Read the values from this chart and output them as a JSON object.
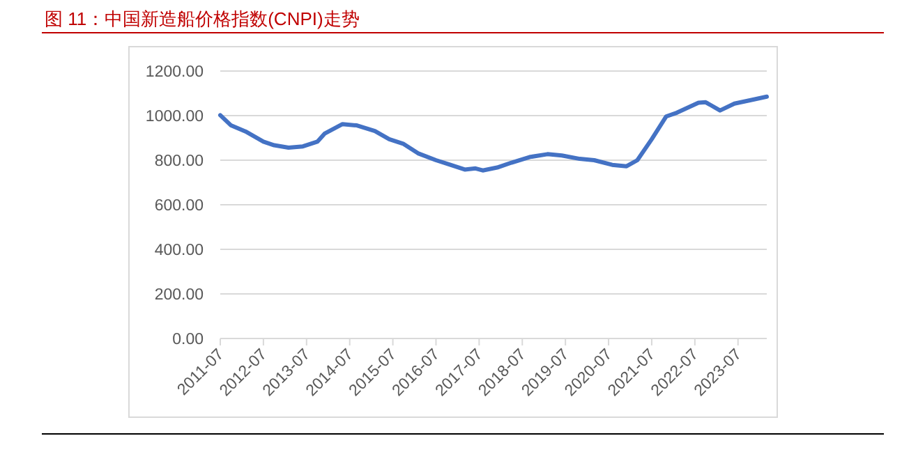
{
  "chart_data": {
    "type": "line",
    "title": "图 11：中国新造船价格指数(CNPI)走势",
    "x": [
      "2011-07",
      "2011-10",
      "2012-02",
      "2012-07",
      "2012-10",
      "2013-02",
      "2013-06",
      "2013-10",
      "2013-12",
      "2014-05",
      "2014-09",
      "2015-02",
      "2015-06",
      "2015-10",
      "2016-02",
      "2016-07",
      "2016-11",
      "2017-03",
      "2017-06",
      "2017-08",
      "2017-12",
      "2018-04",
      "2018-09",
      "2019-02",
      "2019-06",
      "2019-11",
      "2020-03",
      "2020-08",
      "2020-12",
      "2021-03",
      "2021-07",
      "2021-11",
      "2022-02",
      "2022-08",
      "2022-10",
      "2023-02",
      "2023-06",
      "2023-11",
      "2024-03"
    ],
    "series": [
      {
        "color": "#4472c4",
        "values": [
          1002,
          956,
          929,
          883,
          867,
          856,
          862,
          883,
          919,
          962,
          956,
          931,
          894,
          873,
          831,
          800,
          779,
          758,
          763,
          754,
          767,
          789,
          814,
          827,
          821,
          806,
          800,
          779,
          773,
          800,
          894,
          996,
          1013,
          1058,
          1060,
          1023,
          1054,
          1071,
          1085
        ]
      }
    ],
    "xlim": [
      "2011-07",
      "2024-03"
    ],
    "xticks": [
      {
        "value": "2011-07",
        "label": "2011-07"
      },
      {
        "value": "2012-07",
        "label": "2012-07"
      },
      {
        "value": "2013-07",
        "label": "2013-07"
      },
      {
        "value": "2014-07",
        "label": "2014-07"
      },
      {
        "value": "2015-07",
        "label": "2015-07"
      },
      {
        "value": "2016-07",
        "label": "2016-07"
      },
      {
        "value": "2017-07",
        "label": "2017-07"
      },
      {
        "value": "2018-07",
        "label": "2018-07"
      },
      {
        "value": "2019-07",
        "label": "2019-07"
      },
      {
        "value": "2020-07",
        "label": "2020-07"
      },
      {
        "value": "2021-07",
        "label": "2021-07"
      },
      {
        "value": "2022-07",
        "label": "2022-07"
      },
      {
        "value": "2023-07",
        "label": "2023-07"
      }
    ],
    "ylim": [
      0,
      1200
    ],
    "yticks": [
      {
        "value": 0,
        "label": "0.00"
      },
      {
        "value": 200,
        "label": "200.00"
      },
      {
        "value": 400,
        "label": "400.00"
      },
      {
        "value": 600,
        "label": "600.00"
      },
      {
        "value": 800,
        "label": "800.00"
      },
      {
        "value": 1000,
        "label": "1000.00"
      },
      {
        "value": 1200,
        "label": "1200.00"
      }
    ],
    "grid": "y",
    "line_style": "solid"
  }
}
